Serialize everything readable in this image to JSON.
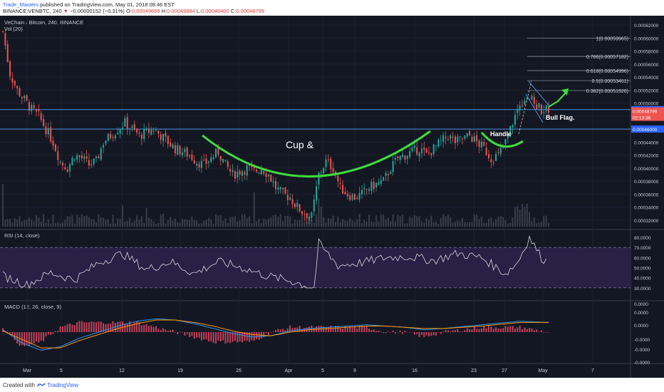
{
  "header": {
    "author": "Trade_Masters",
    "published_text": "published on TradingView.com, May 01, 2018 08:46 EST",
    "symbol_line": "BINANCE:VENBTC, 240",
    "change": "−0.00000152 (−0.31%)",
    "open_label": "O:",
    "open_value": "0.00049669",
    "high_label": "H:",
    "high_value": "0.00049884",
    "low_label": "L:",
    "low_value": "0.00048400",
    "close_label": "C:",
    "close_value": "0.00048799",
    "price_arrow": "▼",
    "last_price": "0.00048799"
  },
  "panes": {
    "main_title": "VeChain / Bitcoin, 240, BINANCE",
    "vol_title": "Vol (20)",
    "rsi_title": "RSI (14, close)",
    "macd_title": "MACD (12, 26, close, 9)"
  },
  "annotations": {
    "cup": "Cup &",
    "handle": "Handle",
    "bull_flag": "Bull Flag."
  },
  "fib_levels": [
    {
      "ratio": "1",
      "value": 0.00059965,
      "label": "1(0.00059965)"
    },
    {
      "ratio": "0.786",
      "value": 0.00057182,
      "label": "0.786(0.00057182)"
    },
    {
      "ratio": "0.618",
      "value": 0.00054996,
      "label": "0.618(0.00054996)"
    },
    {
      "ratio": "0.5",
      "value": 0.00053461,
      "label": "0.5(0.00053461)"
    },
    {
      "ratio": "0.382",
      "value": 0.00051926,
      "label": "0.382(0.00051926)"
    }
  ],
  "price_badges": {
    "upper_line": "0.00049000",
    "current": "0.00048799",
    "countdown": "02:13:36",
    "lower_line": "0.00046000"
  },
  "footer": {
    "created_with": "Created with",
    "brand": "TradingView"
  },
  "colors": {
    "background": "#131722",
    "up_candle": "#26a69a",
    "down_candle": "#ef5350",
    "cup_curve": "#3ddc3d",
    "horizontal_line": "#4a90e2",
    "rsi_band": "#2a1f45",
    "rsi_line": "#d8d8e0",
    "macd_line": "#2196f3",
    "signal_line": "#ff9800",
    "hist_color": "#ff4d6d"
  },
  "chart_data": [
    {
      "type": "candlestick",
      "title": "VeChain / Bitcoin, 240, BINANCE",
      "x_tick_labels": [
        "Mar",
        "5",
        "12",
        "19",
        "26",
        "Apr",
        "5",
        "9",
        "16",
        "23",
        "27",
        "May",
        "7"
      ],
      "y_tick_labels": [
        "0.00062000",
        "0.00060000",
        "0.00058000",
        "0.00056000",
        "0.00054000",
        "0.00052000",
        "0.00050000",
        "0.00048000",
        "0.00046000",
        "0.00044000",
        "0.00042000",
        "0.00040000",
        "0.00038000",
        "0.00036000",
        "0.00034000",
        "0.00032000"
      ],
      "ylim": [
        0.00031,
        0.00063
      ],
      "close_path": [
        [
          0,
          0.00061
        ],
        [
          3,
          0.000545
        ],
        [
          6,
          0.00052
        ],
        [
          9,
          0.000505
        ],
        [
          12,
          0.00049
        ],
        [
          15,
          0.00048
        ],
        [
          18,
          0.00046
        ],
        [
          21,
          0.00044
        ],
        [
          24,
          0.00041
        ],
        [
          27,
          0.0004
        ],
        [
          30,
          0.00042
        ],
        [
          33,
          0.000415
        ],
        [
          36,
          0.000405
        ],
        [
          39,
          0.00041
        ],
        [
          42,
          0.00044
        ],
        [
          45,
          0.00045
        ],
        [
          48,
          0.00046
        ],
        [
          51,
          0.00047
        ],
        [
          54,
          0.00046
        ],
        [
          57,
          0.00045
        ],
        [
          60,
          0.000455
        ],
        [
          63,
          0.00046
        ],
        [
          66,
          0.00045
        ],
        [
          69,
          0.00044
        ],
        [
          72,
          0.00043
        ],
        [
          75,
          0.000425
        ],
        [
          78,
          0.00042
        ],
        [
          81,
          0.00041
        ],
        [
          84,
          0.000405
        ],
        [
          87,
          0.000415
        ],
        [
          90,
          0.000425
        ],
        [
          93,
          0.000405
        ],
        [
          96,
          0.00039
        ],
        [
          99,
          0.000395
        ],
        [
          102,
          0.0004
        ],
        [
          105,
          0.000395
        ],
        [
          108,
          0.0004
        ],
        [
          111,
          0.00039
        ],
        [
          114,
          0.00037
        ],
        [
          117,
          0.00036
        ],
        [
          120,
          0.000355
        ],
        [
          123,
          0.00034
        ],
        [
          126,
          0.00033
        ],
        [
          129,
          0.000325
        ],
        [
          132,
          0.00039
        ],
        [
          135,
          0.00041
        ],
        [
          138,
          0.0004
        ],
        [
          141,
          0.00037
        ],
        [
          144,
          0.00036
        ],
        [
          147,
          0.000355
        ],
        [
          150,
          0.00036
        ],
        [
          153,
          0.00037
        ],
        [
          156,
          0.000375
        ],
        [
          159,
          0.00038
        ],
        [
          162,
          0.0004
        ],
        [
          165,
          0.000415
        ],
        [
          168,
          0.00042
        ],
        [
          171,
          0.000425
        ],
        [
          174,
          0.00043
        ],
        [
          177,
          0.00042
        ],
        [
          180,
          0.00043
        ],
        [
          183,
          0.00044
        ],
        [
          186,
          0.00045
        ],
        [
          189,
          0.00044
        ],
        [
          192,
          0.000445
        ],
        [
          195,
          0.00045
        ],
        [
          198,
          0.00044
        ],
        [
          201,
          0.00043
        ],
        [
          204,
          0.000415
        ],
        [
          207,
          0.00042
        ],
        [
          210,
          0.00044
        ],
        [
          213,
          0.00047
        ],
        [
          216,
          0.0005
        ],
        [
          219,
          0.00051
        ],
        [
          222,
          0.0005
        ],
        [
          225,
          0.00049
        ],
        [
          228,
          0.00049
        ]
      ],
      "x_count": 229
    },
    {
      "type": "line",
      "title": "RSI (14, close)",
      "ylim": [
        20,
        85
      ],
      "y_tick_labels": [
        "80.0000",
        "70.0000",
        "60.0000",
        "50.0000",
        "40.0000",
        "30.0000"
      ],
      "bands": [
        30,
        70
      ],
      "x": [
        0,
        10,
        20,
        30,
        40,
        50,
        60,
        70,
        80,
        90,
        100,
        110,
        120,
        130,
        132,
        140,
        150,
        160,
        170,
        180,
        190,
        200,
        210,
        215,
        220,
        225,
        228
      ],
      "values": [
        42,
        33,
        45,
        38,
        55,
        64,
        48,
        56,
        44,
        56,
        50,
        42,
        37,
        30,
        74,
        52,
        55,
        60,
        61,
        57,
        64,
        60,
        44,
        55,
        80,
        60,
        55
      ]
    },
    {
      "type": "line",
      "title": "MACD (12, 26, close, 9)",
      "y_tick_labels": [
        "0.0000",
        "0.0000",
        "0.0000",
        "-0.0000",
        "-0.0000",
        "-0.0000"
      ],
      "series": [
        {
          "name": "",
          "color": "macd",
          "values": [
            0.2,
            -0.9,
            -1.5,
            -1.2,
            -0.5,
            0.0,
            0.5,
            0.9,
            1.1,
            1.0,
            0.7,
            0.3,
            -0.1,
            -0.4,
            -0.3,
            0.1,
            0.3,
            0.4,
            0.5,
            0.6,
            0.5,
            0.4,
            0.2,
            0.3,
            0.6,
            0.9,
            0.8
          ]
        },
        {
          "name": "",
          "color": "signal",
          "values": [
            0.1,
            -0.6,
            -1.3,
            -1.3,
            -0.7,
            -0.2,
            0.3,
            0.7,
            1.0,
            1.0,
            0.8,
            0.5,
            0.1,
            -0.2,
            -0.3,
            0.0,
            0.2,
            0.3,
            0.4,
            0.5,
            0.5,
            0.4,
            0.3,
            0.3,
            0.5,
            0.8,
            0.8
          ]
        }
      ],
      "x": [
        0,
        8,
        16,
        24,
        32,
        40,
        48,
        56,
        64,
        72,
        80,
        88,
        96,
        104,
        112,
        120,
        128,
        136,
        144,
        152,
        160,
        168,
        176,
        184,
        200,
        216,
        228
      ]
    }
  ]
}
